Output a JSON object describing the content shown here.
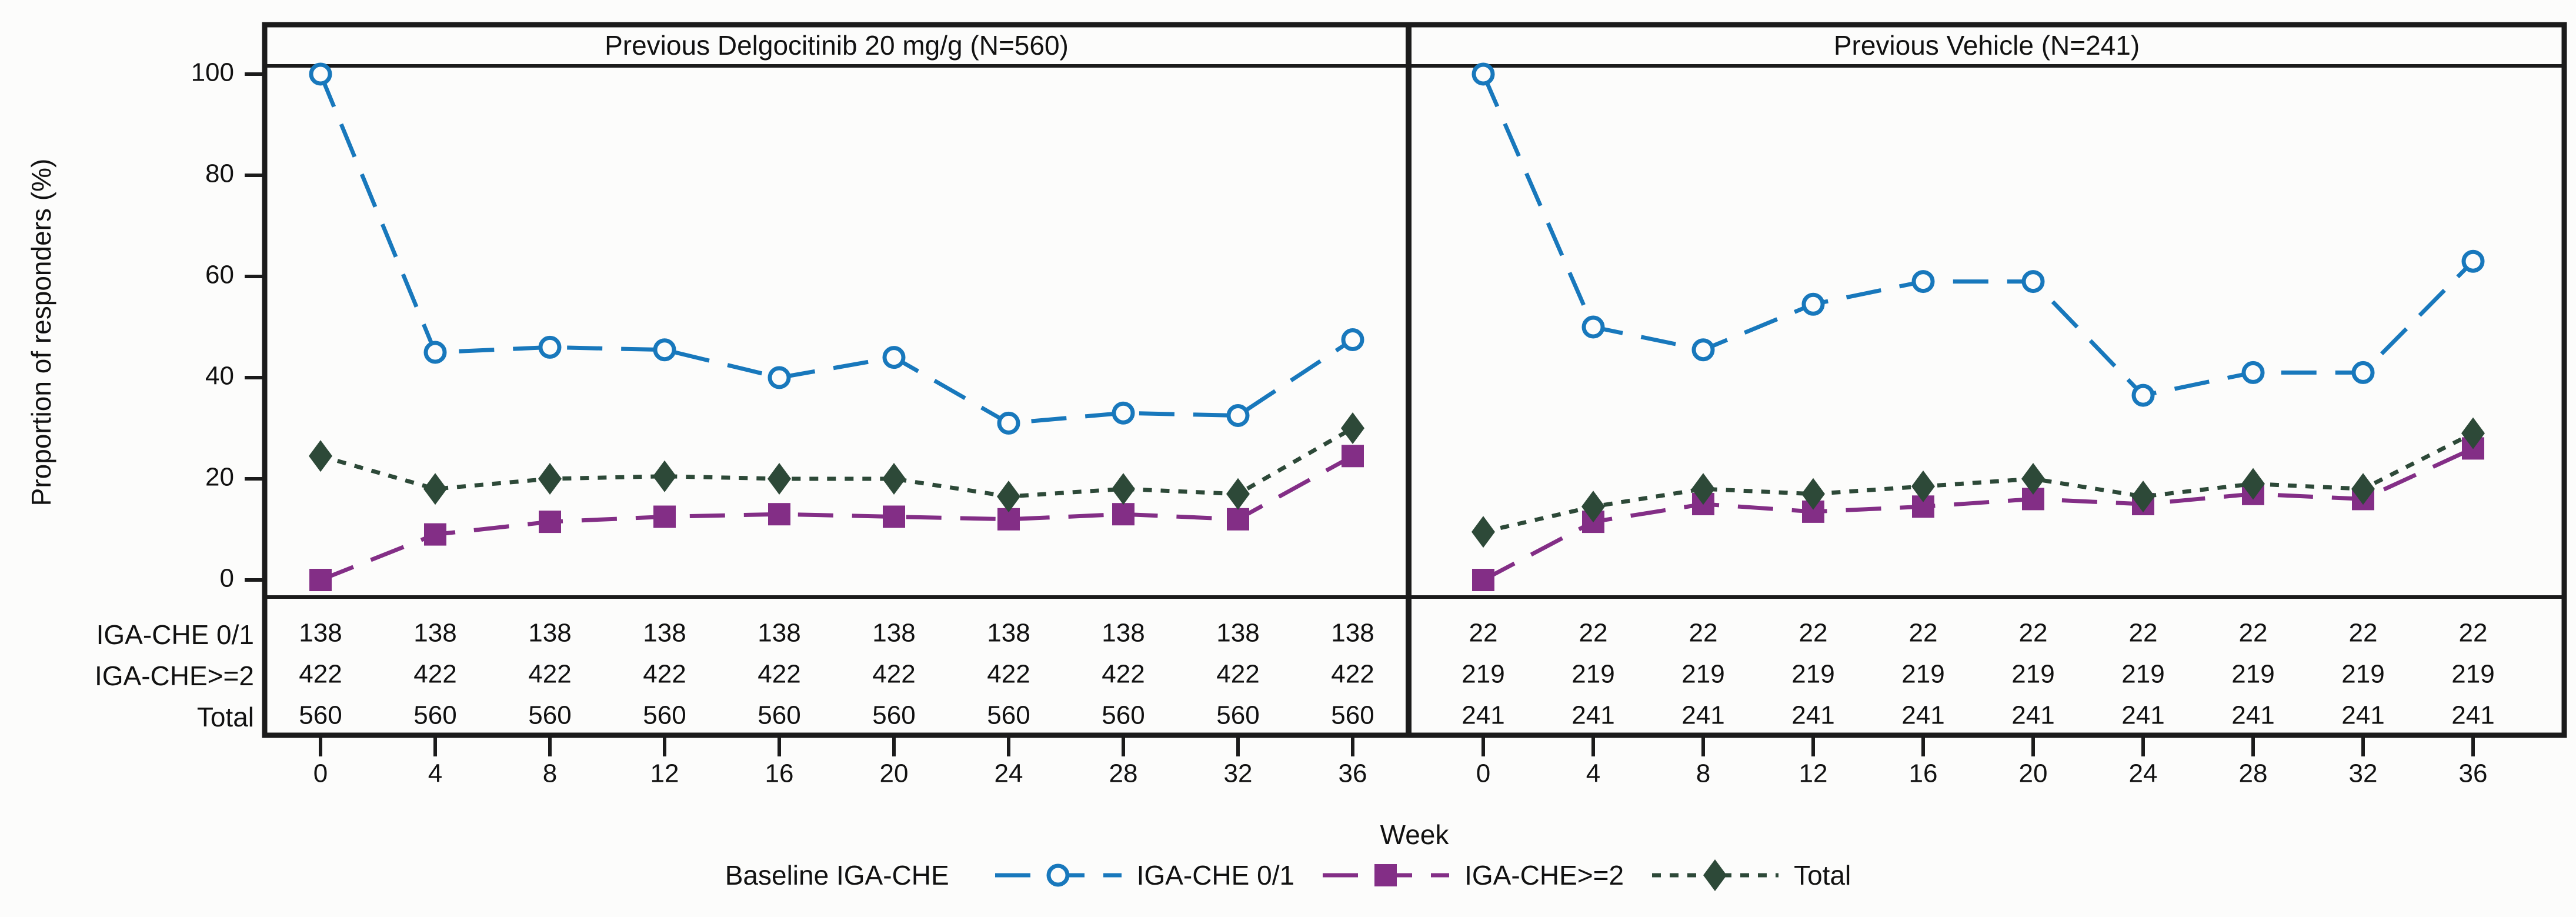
{
  "chart_data": {
    "type": "line",
    "x": [
      0,
      4,
      8,
      12,
      16,
      20,
      24,
      28,
      32,
      36
    ],
    "xlabel": "Week",
    "ylabel": "Proportion of responders (%)",
    "ylim": [
      0,
      100
    ],
    "yticks": [
      0,
      20,
      40,
      60,
      80,
      100
    ],
    "grid": "off",
    "legend_position": "bottom",
    "legend_title": "Baseline IGA-CHE",
    "series_meta": [
      {
        "name": "IGA-CHE 0/1",
        "marker": "circle-open",
        "dash": "long-dash",
        "color": "#1878BC"
      },
      {
        "name": "IGA-CHE>=2",
        "marker": "square",
        "dash": "long-dash",
        "color": "#832E86"
      },
      {
        "name": "Total",
        "marker": "diamond",
        "dash": "dot",
        "color": "#2D4938"
      }
    ],
    "at_risk_row_labels": [
      "IGA-CHE 0/1",
      "IGA-CHE>=2",
      "Total"
    ],
    "panels": [
      {
        "title": "Previous Delgocitinib 20 mg/g (N=560)",
        "series": [
          {
            "name": "IGA-CHE 0/1",
            "values": [
              100,
              45,
              46,
              45.5,
              40,
              44,
              31,
              33,
              32.5,
              47.5
            ]
          },
          {
            "name": "IGA-CHE>=2",
            "values": [
              0,
              9,
              11.5,
              12.5,
              13,
              12.5,
              12,
              13,
              12,
              24.5
            ]
          },
          {
            "name": "Total",
            "values": [
              24.5,
              18,
              20,
              20.5,
              20,
              20,
              16.5,
              18,
              17,
              30
            ]
          }
        ],
        "at_risk": [
          [
            138,
            138,
            138,
            138,
            138,
            138,
            138,
            138,
            138,
            138
          ],
          [
            422,
            422,
            422,
            422,
            422,
            422,
            422,
            422,
            422,
            422
          ],
          [
            560,
            560,
            560,
            560,
            560,
            560,
            560,
            560,
            560,
            560
          ]
        ]
      },
      {
        "title": "Previous Vehicle (N=241)",
        "series": [
          {
            "name": "IGA-CHE 0/1",
            "values": [
              100,
              50,
              45.5,
              54.5,
              59,
              59,
              36.5,
              41,
              41,
              63
            ]
          },
          {
            "name": "IGA-CHE>=2",
            "values": [
              0,
              11.5,
              15,
              13.5,
              14.5,
              16,
              15,
              17,
              16,
              26
            ]
          },
          {
            "name": "Total",
            "values": [
              9.5,
              14.5,
              18,
              17,
              18.5,
              20,
              16.5,
              19,
              18,
              29
            ]
          }
        ],
        "at_risk": [
          [
            22,
            22,
            22,
            22,
            22,
            22,
            22,
            22,
            22,
            22
          ],
          [
            219,
            219,
            219,
            219,
            219,
            219,
            219,
            219,
            219,
            219
          ],
          [
            241,
            241,
            241,
            241,
            241,
            241,
            241,
            241,
            241,
            241
          ]
        ]
      }
    ],
    "colors": {
      "axis": "#1b1b1b",
      "text": "#111111",
      "background": "#fcfcfb"
    }
  }
}
